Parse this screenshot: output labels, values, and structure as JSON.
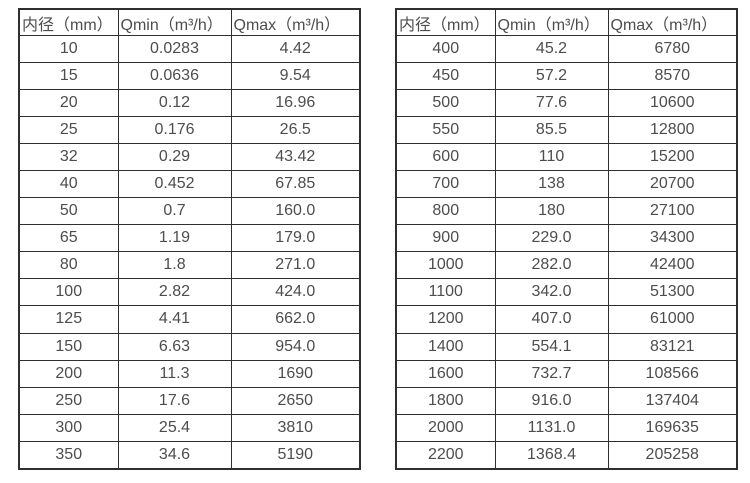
{
  "columns": {
    "diameter": "内径（mm）",
    "qmin": "Qmin（m³/h）",
    "qmax": "Qmax（m³/h）"
  },
  "tables": {
    "left": {
      "rows": [
        [
          "10",
          "0.0283",
          "4.42"
        ],
        [
          "15",
          "0.0636",
          "9.54"
        ],
        [
          "20",
          "0.12",
          "16.96"
        ],
        [
          "25",
          "0.176",
          "26.5"
        ],
        [
          "32",
          "0.29",
          "43.42"
        ],
        [
          "40",
          "0.452",
          "67.85"
        ],
        [
          "50",
          "0.7",
          "160.0"
        ],
        [
          "65",
          "1.19",
          "179.0"
        ],
        [
          "80",
          "1.8",
          "271.0"
        ],
        [
          "100",
          "2.82",
          "424.0"
        ],
        [
          "125",
          "4.41",
          "662.0"
        ],
        [
          "150",
          "6.63",
          "954.0"
        ],
        [
          "200",
          "11.3",
          "1690"
        ],
        [
          "250",
          "17.6",
          "2650"
        ],
        [
          "300",
          "25.4",
          "3810"
        ],
        [
          "350",
          "34.6",
          "5190"
        ]
      ]
    },
    "right": {
      "rows": [
        [
          "400",
          "45.2",
          "6780"
        ],
        [
          "450",
          "57.2",
          "8570"
        ],
        [
          "500",
          "77.6",
          "10600"
        ],
        [
          "550",
          "85.5",
          "12800"
        ],
        [
          "600",
          "110",
          "15200"
        ],
        [
          "700",
          "138",
          "20700"
        ],
        [
          "800",
          "180",
          "27100"
        ],
        [
          "900",
          "229.0",
          "34300"
        ],
        [
          "1000",
          "282.0",
          "42400"
        ],
        [
          "1100",
          "342.0",
          "51300"
        ],
        [
          "1200",
          "407.0",
          "61000"
        ],
        [
          "1400",
          "554.1",
          "83121"
        ],
        [
          "1600",
          "732.7",
          "108566"
        ],
        [
          "1800",
          "916.0",
          "137404"
        ],
        [
          "2000",
          "1131.0",
          "169635"
        ],
        [
          "2200",
          "1368.4",
          "205258"
        ]
      ]
    }
  },
  "colors": {
    "border": "#2f2f2f",
    "text": "#4d4d4d",
    "background": "#ffffff"
  }
}
